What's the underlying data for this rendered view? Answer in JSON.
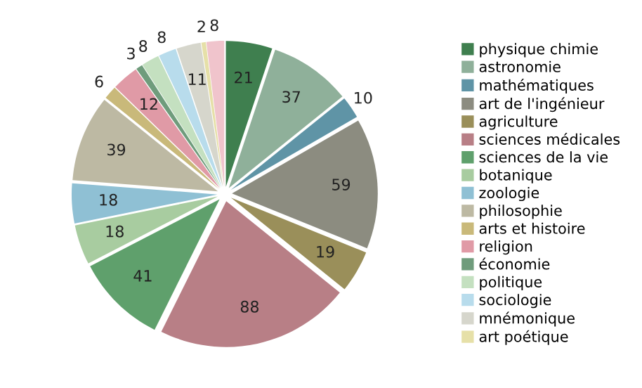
{
  "chart_data": {
    "type": "pie",
    "data_labels": true,
    "legend": "right",
    "categories": [
      "physique chimie",
      "astronomie",
      "mathématiques",
      "art de l'ingénieur",
      "agriculture",
      "sciences médicales",
      "sciences de la vie",
      "botanique",
      "zoologie",
      "philosophie",
      "arts et histoire",
      "religion",
      "économie",
      "politique",
      "sociologie",
      "mnémonique",
      "art poétique",
      null
    ],
    "values": [
      21,
      37,
      10,
      59,
      19,
      88,
      41,
      18,
      18,
      39,
      6,
      12,
      3,
      8,
      8,
      11,
      2,
      8
    ],
    "colors": [
      "#3f7f4f",
      "#8fb09a",
      "#5f94a6",
      "#8c8c80",
      "#9a8f5a",
      "#b87f86",
      "#5fa06c",
      "#a8cca0",
      "#8fc0d4",
      "#bdb9a3",
      "#c9b97a",
      "#e09aa6",
      "#6f9c7c",
      "#c4e0c0",
      "#b8dcec",
      "#d6d6cc",
      "#e6e0a8",
      "#f0c4cc"
    ]
  }
}
